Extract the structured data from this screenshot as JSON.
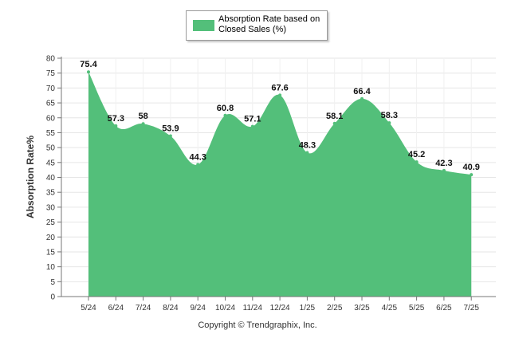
{
  "legend": {
    "label": "Absorption Rate based on Closed Sales (%)"
  },
  "footer": {
    "copyright": "Copyright © Trendgraphix, Inc."
  },
  "colors": {
    "area_fill": "#53bf7a",
    "gridline": "#e6e6e6",
    "axis": "#777777"
  },
  "chart_data": {
    "type": "area",
    "title": "",
    "xlabel": "",
    "ylabel": "Absorption Rate%",
    "categories": [
      "5/24",
      "6/24",
      "7/24",
      "8/24",
      "9/24",
      "10/24",
      "11/24",
      "12/24",
      "1/25",
      "2/25",
      "3/25",
      "4/25",
      "5/25",
      "6/25",
      "7/25"
    ],
    "series": [
      {
        "name": "Absorption Rate based on Closed Sales (%)",
        "values": [
          75.4,
          57.3,
          58,
          53.9,
          44.3,
          60.8,
          57.1,
          67.6,
          48.3,
          58.1,
          66.4,
          58.3,
          45.2,
          42.3,
          40.9
        ],
        "value_labels": [
          "75.4",
          "57.3",
          "58",
          "53.9",
          "44.3",
          "60.8",
          "57.1",
          "67.6",
          "48.3",
          "58.1",
          "66.4",
          "58.3",
          "45.2",
          "42.3",
          "40.9"
        ]
      }
    ],
    "ylim": [
      0,
      80
    ],
    "yticks": [
      "0",
      "5",
      "10",
      "15",
      "20",
      "25",
      "30",
      "35",
      "40",
      "45",
      "50",
      "55",
      "60",
      "65",
      "70",
      "75",
      "80"
    ],
    "grid": true,
    "legend_position": "top-center"
  }
}
